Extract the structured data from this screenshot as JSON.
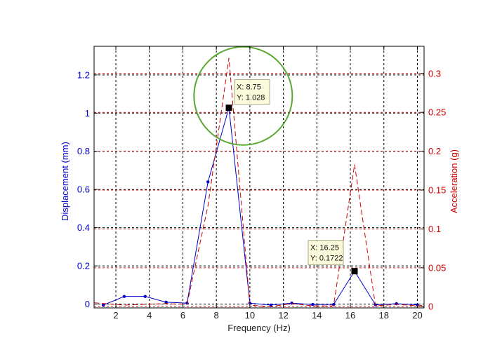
{
  "chart_data": {
    "type": "line",
    "xlabel": "Frequency (Hz)",
    "ylabel_left": "Displacement (mm)",
    "ylabel_right": "Acceleration (g)",
    "xlim": [
      0.7,
      20.4
    ],
    "ylim_left": [
      -0.02,
      1.35
    ],
    "ylim_right": [
      -0.0016,
      0.335
    ],
    "grid": true,
    "x_ticks": [
      2,
      4,
      6,
      8,
      10,
      12,
      14,
      16,
      18,
      20
    ],
    "y_ticks_left": [
      0,
      0.2,
      0.4,
      0.6,
      0.8,
      1,
      1.2
    ],
    "y_tick_labels_left": [
      "0",
      "0.2",
      "0.4",
      "0.6",
      "0.8",
      "1",
      "1.2"
    ],
    "y_ticks_right": [
      0,
      0.05,
      0.1,
      0.15,
      0.2,
      0.25,
      0.3
    ],
    "y_tick_labels_right": [
      "0",
      "0.05",
      "0.1",
      "0.15",
      "0.2",
      "0.25",
      "0.3"
    ],
    "series": [
      {
        "axis": "left",
        "color": "#0000cc",
        "style": "solid-with-dot-markers",
        "x": [
          1.25,
          2.5,
          3.75,
          5.0,
          6.25,
          7.5,
          8.75,
          10.0,
          11.25,
          12.5,
          13.75,
          15.0,
          16.25,
          17.5,
          18.75,
          20.0
        ],
        "y": [
          -0.005,
          0.04,
          0.04,
          0.01,
          0.005,
          0.64,
          1.028,
          0.005,
          -0.005,
          0.005,
          -0.002,
          -0.002,
          0.1722,
          -0.004,
          0.002,
          -0.004
        ]
      },
      {
        "axis": "right",
        "color": "#cc0000",
        "style": "dashed",
        "x": [
          0.7,
          1.25,
          2.5,
          3.75,
          5.0,
          6.25,
          7.5,
          8.75,
          10.0,
          11.25,
          12.5,
          13.75,
          15.0,
          16.25,
          17.5,
          18.75,
          20.0,
          20.4
        ],
        "y": [
          0.005,
          0.004,
          0.002,
          0.003,
          0.004,
          0.003,
          0.13,
          0.32,
          0.002,
          0.0,
          0.004,
          0.001,
          0.001,
          0.183,
          0.001,
          0.003,
          0.001,
          0.002
        ]
      }
    ],
    "datatips": [
      {
        "x": 8.75,
        "y": 1.028,
        "x_text": "X: 8.75",
        "y_text": "Y: 1.028"
      },
      {
        "x": 16.25,
        "y": 0.1722,
        "x_text": "X: 16.25",
        "y_text": "Y: 0.1722"
      }
    ],
    "highlight_circle": {
      "cx": 9.6,
      "cy_left": 1.09,
      "color": "#5aa832"
    },
    "colors": {
      "left_axis": "#0000cc",
      "right_axis": "#cc0000",
      "text": "#222222"
    }
  }
}
